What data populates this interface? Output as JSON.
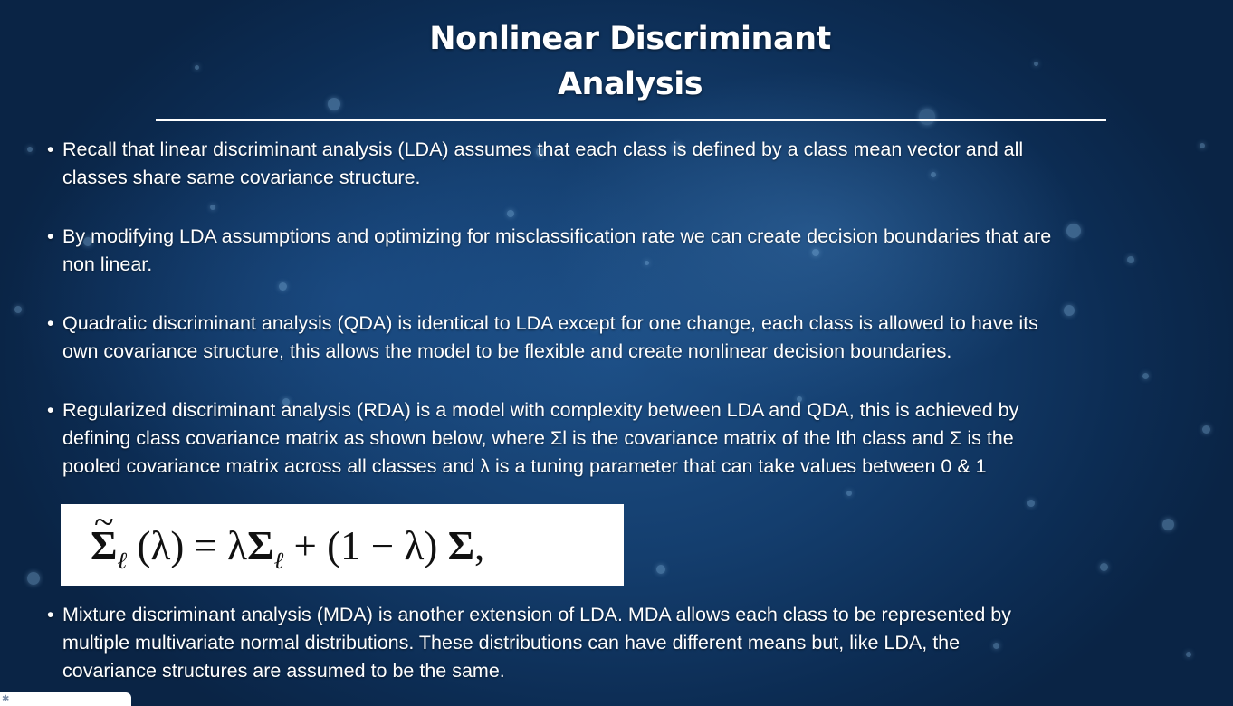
{
  "slide": {
    "title_line1": "Nonlinear Discriminant",
    "title_line2": "Analysis"
  },
  "bullets": [
    {
      "lines": [
        "Recall that linear discriminant analysis (LDA) assumes that each class is defined by a class mean vector and all",
        "classes share same covariance structure."
      ]
    },
    {
      "lines": [
        "By modifying LDA assumptions and optimizing for misclassification rate we can create decision boundaries that are",
        "non linear."
      ]
    },
    {
      "lines": [
        "Quadratic discriminant analysis (QDA) is identical to LDA except for one change, each class is allowed to have its",
        "own covariance structure, this allows the model to be flexible and create nonlinear decision boundaries."
      ]
    },
    {
      "lines": [
        "Regularized discriminant analysis (RDA) is a model with complexity between LDA and QDA, this is achieved by",
        "defining class covariance matrix as shown below, where Σl is the covariance matrix of the lth class and Σ is the",
        "pooled covariance matrix across all classes and λ is a tuning parameter that can take values between 0 & 1"
      ]
    },
    {
      "lines": [
        "Mixture discriminant analysis (MDA) is another extension of LDA. MDA allows each class to be represented by",
        "multiple multivariate normal distributions. These distributions can have different means but, like LDA, the",
        "covariance structures are assumed to be the same."
      ]
    }
  ],
  "bullet_symbol": "•",
  "formula": {
    "sigma": "Σ",
    "tilde": "~",
    "sub": "ℓ",
    "part1": " (λ) = λ",
    "part2": " + (1 − λ) ",
    "end": ","
  },
  "colors": {
    "background": "#143e6e",
    "text": "#ffffff",
    "formula_bg": "#ffffff"
  },
  "icons": {
    "corner": "accessibility-icon"
  }
}
